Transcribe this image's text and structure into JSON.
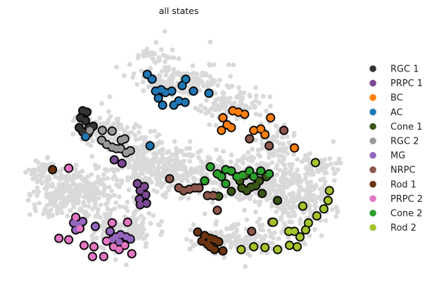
{
  "chart_data": {
    "type": "scatter",
    "title": "all states",
    "xlabel": "",
    "ylabel": "",
    "axes_visible": false,
    "legend_placement": "right",
    "background_color": "#d9d9d9",
    "highlight_outline_color": "#000000",
    "categories": [
      {
        "name": "RGC 1",
        "color": "#333333"
      },
      {
        "name": "PRPC 1",
        "color": "#7b4a93"
      },
      {
        "name": "BC",
        "color": "#ff7f0e"
      },
      {
        "name": "AC",
        "color": "#1f77b4"
      },
      {
        "name": "Cone 1",
        "color": "#3a5518"
      },
      {
        "name": "RGC 2",
        "color": "#999999"
      },
      {
        "name": "MG",
        "color": "#9467bd"
      },
      {
        "name": "NRPC",
        "color": "#8c564b"
      },
      {
        "name": "Rod 1",
        "color": "#6b3410"
      },
      {
        "name": "PRPC 2",
        "color": "#e377c2"
      },
      {
        "name": "Cone 2",
        "color": "#2ca02c"
      },
      {
        "name": "Rod 2",
        "color": "#a4c42a"
      }
    ],
    "series": [
      {
        "name": "RGC 1",
        "points": [
          [
            118,
            158
          ],
          [
            124,
            160
          ],
          [
            115,
            168
          ],
          [
            122,
            172
          ],
          [
            113,
            182
          ],
          [
            118,
            188
          ],
          [
            127,
            182
          ],
          [
            133,
            180
          ],
          [
            126,
            190
          ]
        ]
      },
      {
        "name": "PRPC 1",
        "points": [
          [
            163,
            228
          ],
          [
            174,
            233
          ],
          [
            196,
            262
          ],
          [
            206,
            266
          ],
          [
            200,
            272
          ],
          [
            208,
            278
          ],
          [
            199,
            284
          ],
          [
            209,
            290
          ],
          [
            200,
            292
          ]
        ]
      },
      {
        "name": "BC",
        "points": [
          [
            318,
            168
          ],
          [
            332,
            158
          ],
          [
            340,
            160
          ],
          [
            349,
            163
          ],
          [
            324,
            178
          ],
          [
            316,
            186
          ],
          [
            330,
            182
          ],
          [
            386,
            168
          ],
          [
            372,
            184
          ],
          [
            378,
            192
          ],
          [
            362,
            186
          ],
          [
            420,
            211
          ]
        ]
      },
      {
        "name": "AC",
        "points": [
          [
            210,
            106
          ],
          [
            217,
            113
          ],
          [
            222,
            130
          ],
          [
            230,
            128
          ],
          [
            236,
            132
          ],
          [
            226,
            140
          ],
          [
            245,
            130
          ],
          [
            232,
            150
          ],
          [
            248,
            150
          ],
          [
            255,
            144
          ],
          [
            264,
            146
          ],
          [
            260,
            122
          ],
          [
            265,
            113
          ],
          [
            276,
            130
          ],
          [
            298,
            133
          ],
          [
            214,
            208
          ],
          [
            122,
            195
          ]
        ]
      },
      {
        "name": "Cone 1",
        "points": [
          [
            330,
            273
          ],
          [
            345,
            268
          ],
          [
            352,
            272
          ],
          [
            358,
            267
          ],
          [
            370,
            258
          ],
          [
            380,
            252
          ],
          [
            374,
            276
          ],
          [
            396,
            286
          ],
          [
            365,
            265
          ],
          [
            312,
            280
          ],
          [
            342,
            258
          ],
          [
            350,
            250
          ]
        ]
      },
      {
        "name": "RGC 2",
        "points": [
          [
            128,
            186
          ],
          [
            146,
            186
          ],
          [
            160,
            187
          ],
          [
            145,
            200
          ],
          [
            152,
            206
          ],
          [
            160,
            210
          ],
          [
            166,
            212
          ],
          [
            172,
            212
          ],
          [
            180,
            218
          ],
          [
            186,
            215
          ],
          [
            178,
            198
          ],
          [
            173,
            200
          ]
        ]
      },
      {
        "name": "MG",
        "points": [
          [
            105,
            318
          ],
          [
            112,
            320
          ],
          [
            108,
            328
          ],
          [
            118,
            316
          ],
          [
            136,
            323
          ],
          [
            157,
            330
          ],
          [
            165,
            338
          ],
          [
            172,
            335
          ],
          [
            180,
            338
          ],
          [
            186,
            341
          ],
          [
            160,
            342
          ],
          [
            170,
            345
          ]
        ]
      },
      {
        "name": "NRPC",
        "points": [
          [
            242,
            255
          ],
          [
            255,
            268
          ],
          [
            262,
            272
          ],
          [
            270,
            270
          ],
          [
            278,
            268
          ],
          [
            284,
            268
          ],
          [
            296,
            279
          ],
          [
            304,
            279
          ],
          [
            356,
            198
          ],
          [
            384,
            208
          ],
          [
            405,
            186
          ],
          [
            310,
            300
          ],
          [
            359,
            330
          ],
          [
            388,
            317
          ]
        ]
      },
      {
        "name": "Rod 1",
        "points": [
          [
            75,
            242
          ],
          [
            282,
            331
          ],
          [
            292,
            336
          ],
          [
            300,
            340
          ],
          [
            296,
            348
          ],
          [
            306,
            342
          ],
          [
            312,
            345
          ],
          [
            306,
            356
          ],
          [
            318,
            358
          ],
          [
            288,
            344
          ],
          [
            300,
            352
          ]
        ]
      },
      {
        "name": "PRPC 2",
        "points": [
          [
            98,
            240
          ],
          [
            108,
            310
          ],
          [
            114,
            326
          ],
          [
            134,
            352
          ],
          [
            152,
            344
          ],
          [
            162,
            352
          ],
          [
            178,
            350
          ],
          [
            182,
            317
          ],
          [
            188,
            362
          ],
          [
            170,
            356
          ],
          [
            132,
            366
          ],
          [
            148,
            366
          ],
          [
            120,
            350
          ],
          [
            98,
            342
          ],
          [
            84,
            340
          ],
          [
            160,
            318
          ]
        ]
      },
      {
        "name": "Cone 2",
        "points": [
          [
            300,
            238
          ],
          [
            310,
            248
          ],
          [
            316,
            252
          ],
          [
            322,
            242
          ],
          [
            330,
            244
          ],
          [
            338,
            252
          ],
          [
            346,
            250
          ],
          [
            356,
            244
          ],
          [
            362,
            252
          ],
          [
            372,
            244
          ],
          [
            384,
            248
          ],
          [
            292,
            258
          ],
          [
            322,
            262
          ]
        ]
      },
      {
        "name": "Rod 2",
        "points": [
          [
            450,
            232
          ],
          [
            470,
            272
          ],
          [
            468,
            286
          ],
          [
            462,
            298
          ],
          [
            440,
            318
          ],
          [
            452,
            308
          ],
          [
            432,
            294
          ],
          [
            390,
            317
          ],
          [
            412,
            330
          ],
          [
            420,
            330
          ],
          [
            428,
            338
          ],
          [
            436,
            328
          ],
          [
            424,
            352
          ],
          [
            413,
            350
          ],
          [
            396,
            356
          ],
          [
            378,
            353
          ],
          [
            344,
            356
          ],
          [
            362,
            352
          ]
        ]
      }
    ]
  }
}
